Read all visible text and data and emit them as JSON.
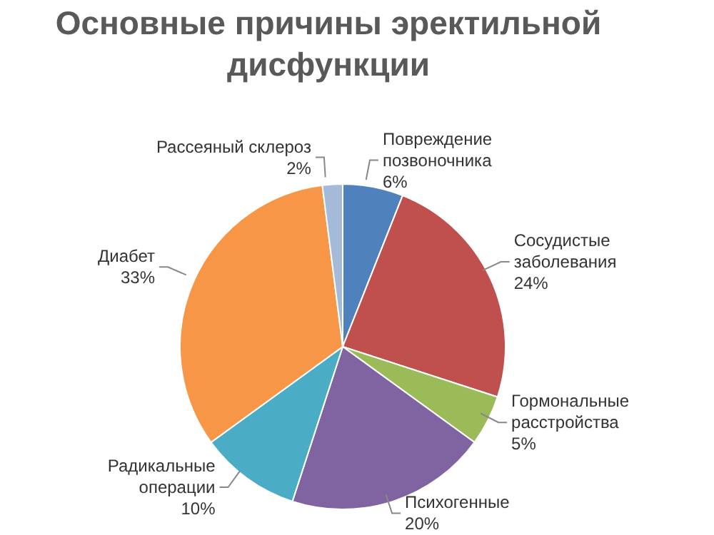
{
  "chart_data": {
    "type": "pie",
    "title": "Основные причины эректильной\nдисфункции",
    "categories": [
      "Повреждение\nпозвоночника",
      "Сосудистые\nзаболевания",
      "Гормональные\nрасстройства",
      "Психогенные",
      "Радикальные\nоперации",
      "Диабет",
      "Рассеяный склероз"
    ],
    "values": [
      6,
      24,
      5,
      20,
      10,
      33,
      2
    ],
    "value_labels": [
      "6%",
      "24%",
      "5%",
      "20%",
      "10%",
      "33%",
      "2%"
    ],
    "colors": [
      "#4f81bd",
      "#c0504d",
      "#9bbb59",
      "#8064a2",
      "#4bacc6",
      "#f79646",
      "#a5b9d9"
    ]
  }
}
